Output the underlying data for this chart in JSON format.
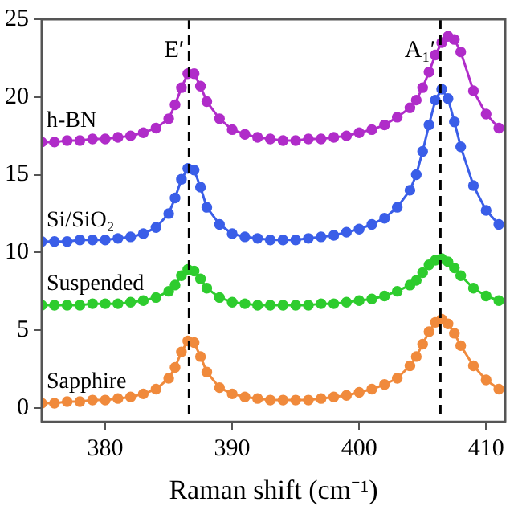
{
  "chart_data": {
    "type": "line",
    "xlabel": "Raman shift (cm⁻¹)",
    "xlim": [
      375,
      411.5
    ],
    "xticks": [
      380,
      390,
      400,
      410
    ],
    "ylim": [
      -0.9,
      25
    ],
    "yticks": [
      0,
      5,
      10,
      15,
      20,
      25
    ],
    "grid": false,
    "legend": false,
    "marker": "circle",
    "line_style": "solid",
    "x": [
      375,
      376,
      377,
      378,
      379,
      380,
      381,
      382,
      383,
      384,
      385,
      385.5,
      386,
      386.5,
      387,
      387.5,
      388,
      389,
      390,
      391,
      392,
      393,
      394,
      395,
      396,
      397,
      398,
      399,
      400,
      401,
      402,
      403,
      404,
      404.5,
      405,
      405.5,
      406,
      406.5,
      407,
      407.5,
      408,
      409,
      410,
      411
    ],
    "series": [
      {
        "name": "Sapphire",
        "color": "#f08a3c",
        "values": [
          0.3,
          0.3,
          0.4,
          0.4,
          0.5,
          0.5,
          0.6,
          0.7,
          0.9,
          1.2,
          1.9,
          2.6,
          3.6,
          4.3,
          4.2,
          3.3,
          2.3,
          1.3,
          0.9,
          0.7,
          0.6,
          0.5,
          0.5,
          0.5,
          0.5,
          0.6,
          0.7,
          0.8,
          1.0,
          1.2,
          1.5,
          1.9,
          2.7,
          3.3,
          4.1,
          4.9,
          5.5,
          5.7,
          5.4,
          4.8,
          4.0,
          2.7,
          1.8,
          1.2
        ]
      },
      {
        "name": "Suspended",
        "color": "#2ecc2e",
        "values": [
          6.6,
          6.6,
          6.6,
          6.6,
          6.7,
          6.7,
          6.7,
          6.8,
          6.9,
          7.1,
          7.5,
          7.9,
          8.5,
          8.9,
          8.8,
          8.3,
          7.7,
          7.1,
          6.8,
          6.7,
          6.6,
          6.6,
          6.6,
          6.6,
          6.6,
          6.7,
          6.7,
          6.8,
          6.9,
          7.0,
          7.2,
          7.5,
          7.9,
          8.2,
          8.7,
          9.2,
          9.5,
          9.6,
          9.4,
          9.0,
          8.5,
          7.7,
          7.2,
          6.9
        ]
      },
      {
        "name": "Si/SiO₂",
        "color": "#3a5ee8",
        "values": [
          10.7,
          10.7,
          10.7,
          10.8,
          10.8,
          10.8,
          10.9,
          11.0,
          11.2,
          11.6,
          12.5,
          13.5,
          14.7,
          15.4,
          15.3,
          14.2,
          12.9,
          11.8,
          11.2,
          11.0,
          10.9,
          10.8,
          10.8,
          10.8,
          10.9,
          11.0,
          11.1,
          11.3,
          11.5,
          11.8,
          12.2,
          12.9,
          14.0,
          15.0,
          16.5,
          18.2,
          19.8,
          20.5,
          19.9,
          18.4,
          16.8,
          14.3,
          12.7,
          11.8
        ]
      },
      {
        "name": "h-BN",
        "color": "#b02cc9",
        "values": [
          17.1,
          17.1,
          17.2,
          17.2,
          17.3,
          17.3,
          17.4,
          17.5,
          17.7,
          18.0,
          18.6,
          19.5,
          20.6,
          21.5,
          21.5,
          20.7,
          19.7,
          18.6,
          17.9,
          17.6,
          17.4,
          17.3,
          17.2,
          17.2,
          17.3,
          17.3,
          17.4,
          17.5,
          17.7,
          17.9,
          18.2,
          18.7,
          19.3,
          19.8,
          20.6,
          21.6,
          22.7,
          23.5,
          23.9,
          23.7,
          22.9,
          20.4,
          18.9,
          18.0
        ]
      }
    ],
    "ref_lines": [
      {
        "axis": "x",
        "value": 386.6,
        "label": "E′",
        "color": "#000000",
        "line_style": "dashed"
      },
      {
        "axis": "x",
        "value": 406.4,
        "label": "A₁′",
        "color": "#000000",
        "line_style": "dashed"
      }
    ]
  }
}
